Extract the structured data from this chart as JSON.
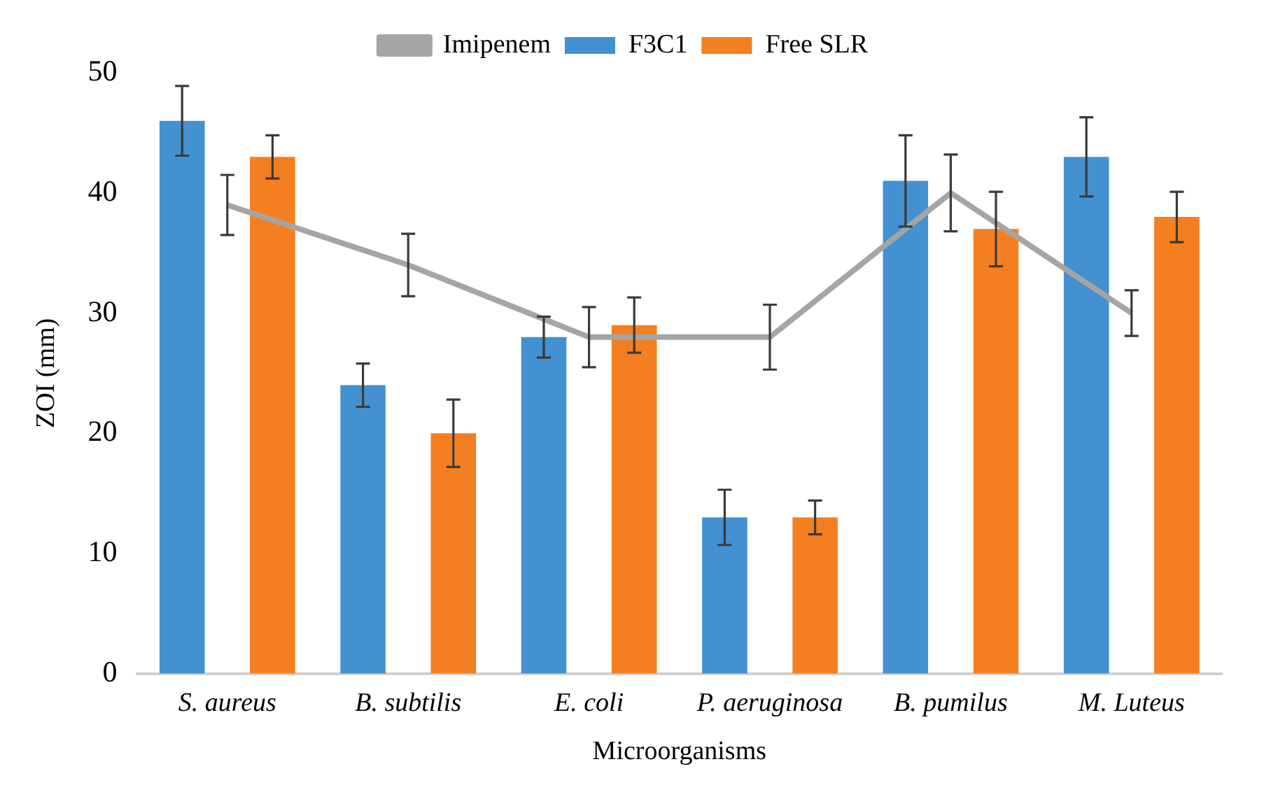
{
  "chart_data": {
    "type": "bar",
    "xlabel": "Microorganisms",
    "ylabel": "ZOI (mm)",
    "categories": [
      "S. aureus",
      "B. subtilis",
      "E. coli",
      "P. aeruginosa",
      "B. pumilus",
      "M. Luteus"
    ],
    "series": [
      {
        "name": "F3C1",
        "color": "#4391d1",
        "values": [
          46,
          24,
          28,
          13,
          41,
          43
        ],
        "errors": [
          2.9,
          1.8,
          1.7,
          2.3,
          3.8,
          3.3
        ]
      },
      {
        "name": "Free SLR",
        "color": "#f47f20",
        "values": [
          43,
          20,
          29,
          13,
          37,
          38
        ],
        "errors": [
          1.8,
          2.8,
          2.3,
          1.4,
          3.1,
          2.1
        ]
      },
      {
        "name": "Imipenem",
        "type": "line",
        "color": "#a5a5a5",
        "marker": "none",
        "values": [
          39,
          34,
          28,
          28,
          40,
          30
        ],
        "errors": [
          2.5,
          2.6,
          2.5,
          2.7,
          3.2,
          1.9
        ]
      }
    ],
    "ylim": [
      0,
      50
    ],
    "yticks": [
      0,
      10,
      20,
      30,
      40,
      50
    ],
    "grid": false,
    "legend": "top"
  }
}
